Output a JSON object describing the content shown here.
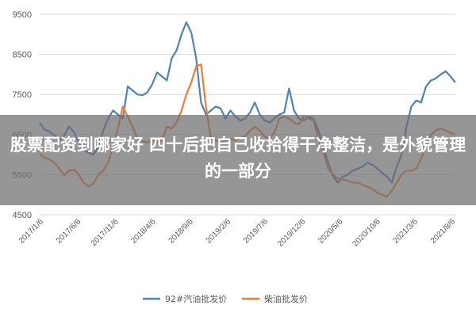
{
  "chart_data": {
    "type": "line",
    "title": "",
    "xlabel": "",
    "ylabel": "",
    "ylim": [
      4500,
      9500
    ],
    "yticks": [
      4500,
      5500,
      6500,
      7500,
      8500,
      9500
    ],
    "xtick_labels": [
      "2017/1/6",
      "2017/6/6",
      "2017/11/6",
      "2018/4/6",
      "2018/9/6",
      "2019/2/6",
      "2019/7/6",
      "2019/12/6",
      "2020/5/6",
      "2020/10/6",
      "2021/3/6",
      "2021/8/6"
    ],
    "legend_position": "bottom",
    "grid": "horizontal",
    "series": [
      {
        "name": "92#汽油批发价",
        "color": "#4e81bd",
        "values": [
          6800,
          6620,
          6580,
          6480,
          6350,
          6470,
          6700,
          6560,
          6300,
          6120,
          6050,
          6000,
          6200,
          6600,
          6900,
          7100,
          7000,
          6900,
          7700,
          7600,
          7500,
          7480,
          7550,
          7750,
          8050,
          7950,
          7850,
          8400,
          8600,
          9000,
          9300,
          9050,
          8400,
          7300,
          7000,
          7100,
          7200,
          7150,
          6900,
          7100,
          6950,
          6850,
          6900,
          7050,
          7300,
          7000,
          6850,
          6800,
          6900,
          7000,
          7050,
          7650,
          7100,
          6900,
          6850,
          6950,
          6900,
          6600,
          6200,
          5800,
          5450,
          5300,
          5450,
          5500,
          5600,
          5650,
          5700,
          5800,
          5750,
          5650,
          5550,
          5450,
          5300,
          5700,
          6000,
          6700,
          7200,
          7350,
          7300,
          7700,
          7850,
          7900,
          8000,
          8080,
          7950,
          7800
        ]
      },
      {
        "name": "柴油批发价",
        "color": "#ed7d31",
        "values": [
          6020,
          5920,
          5880,
          5800,
          5650,
          5480,
          5600,
          5620,
          5500,
          5300,
          5200,
          5280,
          5500,
          5600,
          5800,
          6200,
          6650,
          7200,
          6950,
          6700,
          6400,
          6330,
          6300,
          6370,
          6300,
          6350,
          6700,
          6650,
          6800,
          7100,
          7500,
          7800,
          8200,
          8250,
          7200,
          6400,
          6350,
          6300,
          6350,
          6400,
          6350,
          6420,
          6450,
          6600,
          6700,
          6600,
          6450,
          6400,
          6550,
          6900,
          6950,
          6900,
          6800,
          6750,
          6950,
          6900,
          6850,
          6400,
          6050,
          5650,
          5500,
          5400,
          5380,
          5350,
          5300,
          5300,
          5250,
          5200,
          5150,
          5050,
          5000,
          4950,
          5100,
          5300,
          5500,
          5600,
          5600,
          5650,
          5900,
          6200,
          6500,
          6600,
          6650,
          6600,
          6550,
          6500
        ]
      }
    ]
  },
  "caption": "股票配资到哪家好 四十后把自己收拾得干净整洁，是外貌管理的一部分"
}
